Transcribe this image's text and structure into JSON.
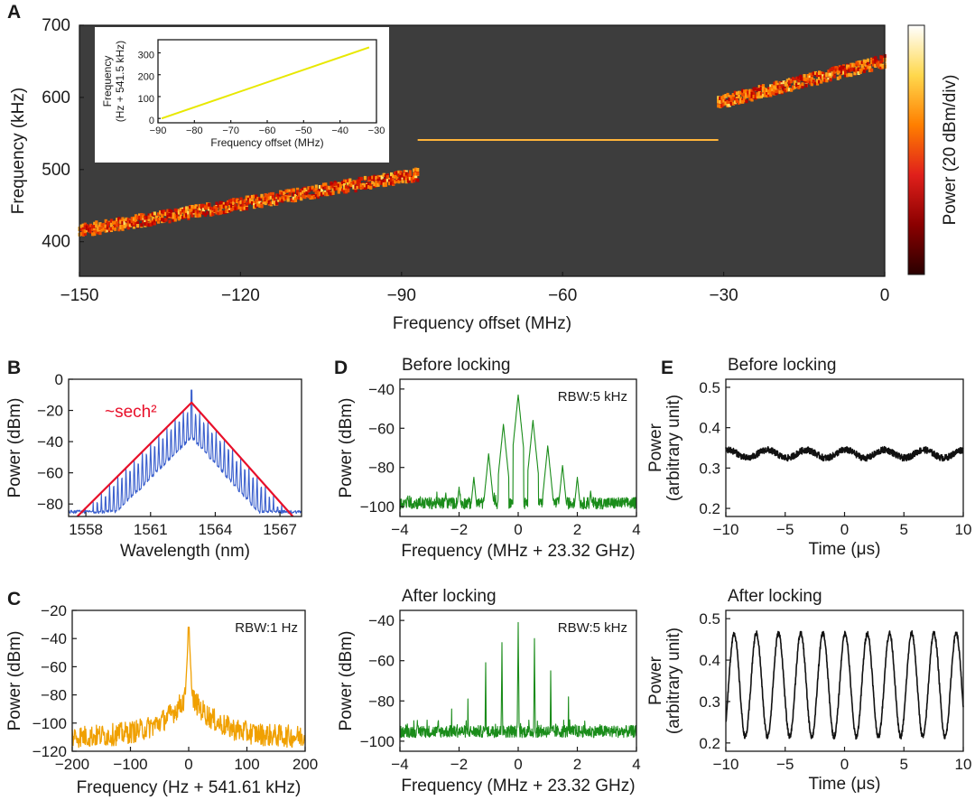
{
  "figure": {
    "panel_letters": [
      "A",
      "B",
      "C",
      "D",
      "E"
    ]
  },
  "chart_data": [
    {
      "id": "A",
      "type": "heatmap",
      "xlabel": "Frequency offset (MHz)",
      "ylabel": "Frequency (kHz)",
      "xlim": [
        -150,
        0
      ],
      "ylim": [
        352,
        700
      ],
      "xticks": [
        -150,
        -120,
        -90,
        -60,
        -30,
        0
      ],
      "xtick_labels": [
        "−150",
        "−120",
        "−90",
        "−60",
        "−30",
        "0"
      ],
      "yticks": [
        400,
        500,
        600,
        700
      ],
      "ytick_labels": [
        "400",
        "500",
        "600",
        "700"
      ],
      "background": "#3d3d3d",
      "colorbar_label": "Power (20 dBm/div)",
      "colormap": [
        "#2a0000",
        "#8b0000",
        "#e0201b",
        "#ff7f00",
        "#ffd84d",
        "#ffffff"
      ],
      "segments": [
        {
          "name": "unlocked-left",
          "x": [
            -150,
            -87
          ],
          "y": [
            415,
            493
          ]
        },
        {
          "name": "locked",
          "x": [
            -87,
            -31
          ],
          "y": [
            541,
            541
          ]
        },
        {
          "name": "unlocked-right",
          "x": [
            -31,
            0
          ],
          "y": [
            593,
            650
          ]
        }
      ]
    },
    {
      "id": "A-inset",
      "type": "line",
      "xlabel": "Frequency offset (MHz)",
      "ylabel": "Frequency\n(Hz + 541.5 kHz)",
      "ylabel_lines": [
        "Frequency",
        "(Hz + 541.5 kHz)"
      ],
      "xlim": [
        -90,
        -30
      ],
      "ylim": [
        -20,
        360
      ],
      "xticks": [
        -90,
        -80,
        -70,
        -60,
        -50,
        -40,
        -30
      ],
      "xtick_labels": [
        "−90",
        "−80",
        "−70",
        "−60",
        "−50",
        "−40",
        "−30"
      ],
      "yticks": [
        0,
        100,
        200,
        300
      ],
      "ytick_labels": [
        "0",
        "100",
        "200",
        "300"
      ],
      "background": "#3d3d3d",
      "line_color": "#e8e800",
      "x": [
        -89,
        -32
      ],
      "y": [
        0,
        325
      ]
    },
    {
      "id": "B",
      "type": "line",
      "xlabel": "Wavelength (nm)",
      "ylabel": "Power (dBm)",
      "xlim": [
        1557.2,
        1568.0
      ],
      "ylim": [
        -88,
        0
      ],
      "xticks": [
        1558,
        1561,
        1564,
        1567
      ],
      "xtick_labels": [
        "1558",
        "1561",
        "1564",
        "1567"
      ],
      "yticks": [
        0,
        -20,
        -40,
        -60,
        -80
      ],
      "ytick_labels": [
        "0",
        "−20",
        "−40",
        "−60",
        "−80"
      ],
      "annotation": "~sech²",
      "series": [
        {
          "name": "comb spectrum",
          "color": "#3a5fcd",
          "center": 1562.9,
          "peak": -7,
          "floor": -85,
          "line_spacing_nm": 0.19
        },
        {
          "name": "sech² fit",
          "color": "#e8102a",
          "x": [
            1557.6,
            1562.9,
            1567.6
          ],
          "y": [
            -88,
            -15,
            -88
          ]
        }
      ]
    },
    {
      "id": "C",
      "type": "line",
      "xlabel": "Frequency (Hz + 541.61 kHz)",
      "ylabel": "Power (dBm)",
      "xlim": [
        -200,
        200
      ],
      "ylim": [
        -120,
        -20
      ],
      "xticks": [
        -200,
        -100,
        0,
        100,
        200
      ],
      "xtick_labels": [
        "−200",
        "−100",
        "0",
        "100",
        "200"
      ],
      "yticks": [
        -20,
        -40,
        -60,
        -80,
        -100,
        -120
      ],
      "ytick_labels": [
        "−20",
        "−40",
        "−60",
        "−80",
        "−100",
        "−120"
      ],
      "annotation": "RBW:1 Hz",
      "series": [
        {
          "name": "beat note",
          "color": "#f0a000",
          "peak_x": 0,
          "peak_y": -32,
          "pedestal_y": -78,
          "floor": -110
        }
      ]
    },
    {
      "id": "D-before",
      "type": "line",
      "title": "Before locking",
      "xlabel": "Frequency (MHz + 23.32 GHz)",
      "ylabel": "Power (dBm)",
      "xlim": [
        -4,
        4
      ],
      "ylim": [
        -105,
        -35
      ],
      "xticks": [
        -4,
        -2,
        0,
        2,
        4
      ],
      "xtick_labels": [
        "−4",
        "−2",
        "0",
        "2",
        "4"
      ],
      "yticks": [
        -40,
        -60,
        -80,
        -100
      ],
      "ytick_labels": [
        "−40",
        "−60",
        "−80",
        "−100"
      ],
      "annotation": "RBW:5 kHz",
      "series": [
        {
          "name": "spectrum",
          "color": "#1a8c1a",
          "floor": -100,
          "peaks_x": [
            -2.45,
            -2.0,
            -1.5,
            -1.0,
            -0.5,
            0.0,
            0.5,
            1.0,
            1.5,
            2.0,
            2.45
          ],
          "peaks_y": [
            -93,
            -90,
            -85,
            -73,
            -58,
            -43,
            -56,
            -69,
            -79,
            -85,
            -92
          ]
        }
      ]
    },
    {
      "id": "D-after",
      "type": "line",
      "title": "After locking",
      "xlabel": "Frequency (MHz + 23.32 GHz)",
      "ylabel": "Power (dBm)",
      "xlim": [
        -4,
        4
      ],
      "ylim": [
        -105,
        -35
      ],
      "xticks": [
        -4,
        -2,
        0,
        2,
        4
      ],
      "xtick_labels": [
        "−4",
        "−2",
        "0",
        "2",
        "4"
      ],
      "yticks": [
        -40,
        -60,
        -80,
        -100
      ],
      "ytick_labels": [
        "−40",
        "−60",
        "−80",
        "−100"
      ],
      "annotation": "RBW:5 kHz",
      "series": [
        {
          "name": "spectrum",
          "color": "#1a8c1a",
          "floor": -97,
          "peaks_x": [
            -2.25,
            -1.7,
            -1.1,
            -0.55,
            0.0,
            0.55,
            1.1,
            1.7,
            2.25
          ],
          "peaks_y": [
            -84,
            -79,
            -61,
            -51,
            -41,
            -49,
            -65,
            -78,
            -90
          ]
        }
      ]
    },
    {
      "id": "E-before",
      "type": "line",
      "title": "Before locking",
      "xlabel": "Time (μs)",
      "ylabel": "Power\n(arbitrary unit)",
      "ylabel_lines": [
        "Power",
        "(arbitrary unit)"
      ],
      "xlim": [
        -10,
        10
      ],
      "ylim": [
        0.18,
        0.52
      ],
      "xticks": [
        -10,
        -5,
        0,
        5,
        10
      ],
      "xtick_labels": [
        "−10",
        "−5",
        "0",
        "5",
        "10"
      ],
      "yticks": [
        0.2,
        0.3,
        0.4,
        0.5
      ],
      "ytick_labels": [
        "0.2",
        "0.3",
        "0.4",
        "0.5"
      ],
      "series": [
        {
          "name": "intensity",
          "color": "#111111",
          "mean": 0.335,
          "amplitude": 0.01,
          "period_us": 3.3,
          "noise": 0.008
        }
      ]
    },
    {
      "id": "E-after",
      "type": "line",
      "title": "After locking",
      "xlabel": "Time (μs)",
      "ylabel": "Power\n(arbitrary unit)",
      "ylabel_lines": [
        "Power",
        "(arbitrary unit)"
      ],
      "xlim": [
        -10,
        10
      ],
      "ylim": [
        0.18,
        0.52
      ],
      "xticks": [
        -10,
        -5,
        0,
        5,
        10
      ],
      "xtick_labels": [
        "−10",
        "−5",
        "0",
        "5",
        "10"
      ],
      "yticks": [
        0.2,
        0.3,
        0.4,
        0.5
      ],
      "ytick_labels": [
        "0.2",
        "0.3",
        "0.4",
        "0.5"
      ],
      "series": [
        {
          "name": "intensity",
          "color": "#111111",
          "mean": 0.34,
          "amplitude": 0.125,
          "period_us": 1.87,
          "noise": 0.006
        }
      ]
    }
  ]
}
